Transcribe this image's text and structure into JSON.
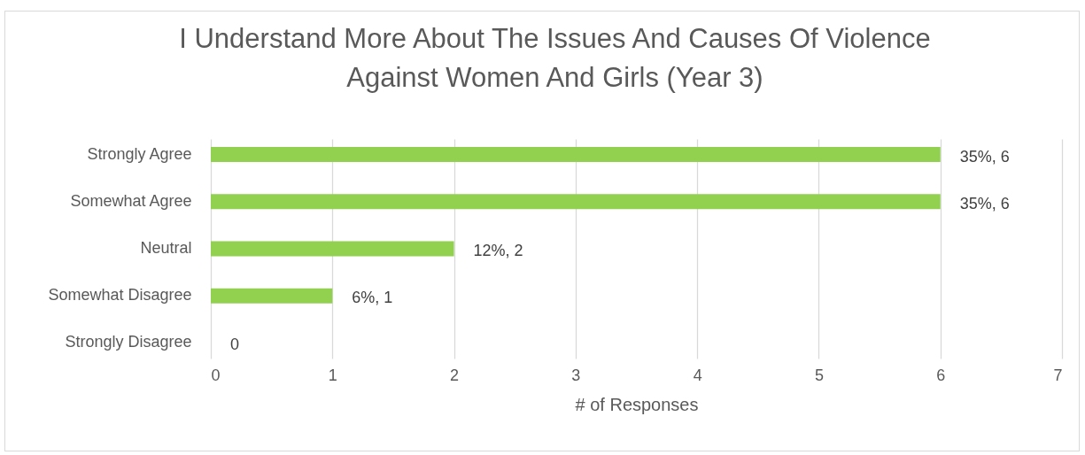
{
  "chart_data": {
    "type": "bar",
    "orientation": "horizontal",
    "title": "I Understand More About The Issues And Causes Of Violence Against Women And Girls (Year 3)",
    "xlabel": "# of Responses",
    "categories": [
      "Strongly Agree",
      "Somewhat  Agree",
      "Neutral",
      "Somewhat Disagree",
      "Strongly Disagree"
    ],
    "values": [
      6,
      6,
      2,
      1,
      0
    ],
    "color": "#92d050",
    "value_labels": [
      "35%, 6",
      "35%, 6",
      "12%, 2",
      "6%, 1",
      "0"
    ],
    "xlim": [
      0,
      7
    ],
    "xticks": [
      0,
      1,
      2,
      3,
      4,
      5,
      6,
      7
    ],
    "grid": "x"
  }
}
